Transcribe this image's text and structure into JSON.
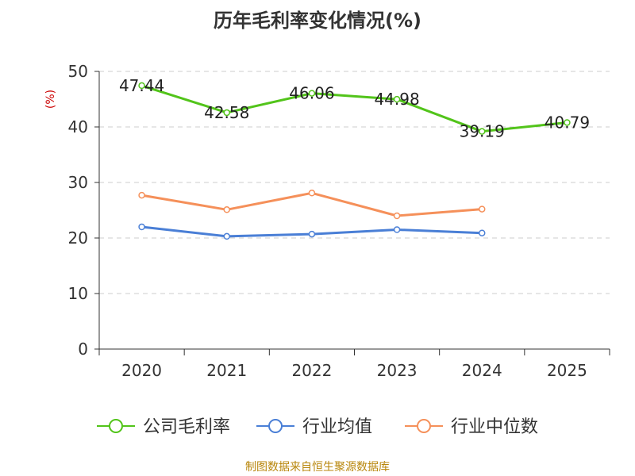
{
  "chart_data": {
    "type": "line",
    "title": "历年毛利率变化情况(%)",
    "ylabel": "(%)",
    "xlabel": "",
    "categories": [
      "2020",
      "2021",
      "2022",
      "2023",
      "2024",
      "2025"
    ],
    "ylim": [
      0,
      50
    ],
    "yticks": [
      0,
      10,
      20,
      30,
      40,
      50
    ],
    "grid": true,
    "legend_position": "bottom",
    "series": [
      {
        "name": "公司毛利率",
        "color": "#52c41a",
        "values": [
          47.44,
          42.58,
          46.06,
          44.98,
          39.19,
          40.79
        ],
        "labels": [
          "47.44",
          "42.58",
          "46.06",
          "44.98",
          "39.19",
          "40.79"
        ],
        "show_labels": true
      },
      {
        "name": "行业均值",
        "color": "#4a7fd6",
        "values": [
          22.0,
          20.3,
          20.7,
          21.5,
          20.9,
          null
        ],
        "show_labels": false
      },
      {
        "name": "行业中位数",
        "color": "#f5905a",
        "values": [
          27.7,
          25.1,
          28.1,
          24.0,
          25.2,
          null
        ],
        "show_labels": false
      }
    ]
  },
  "source": "制图数据来自恒生聚源数据库"
}
